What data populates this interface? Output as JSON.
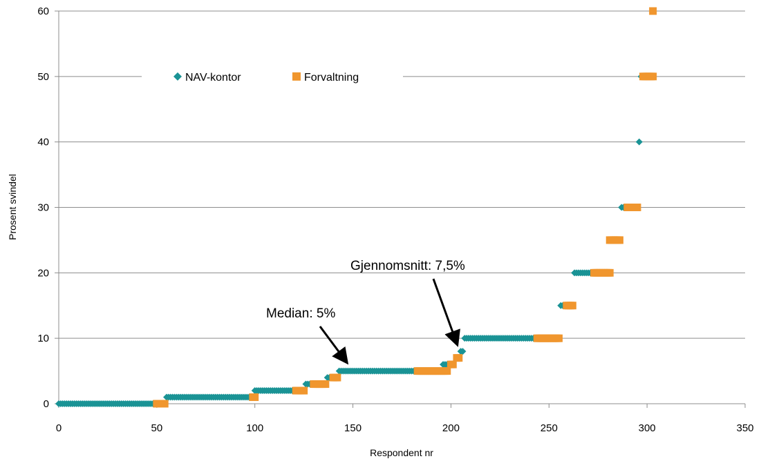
{
  "chart_data": {
    "type": "scatter",
    "title": "",
    "xlabel": "Respondent nr",
    "ylabel": "Prosent svindel",
    "xlim": [
      0,
      350
    ],
    "ylim": [
      0,
      60
    ],
    "x_ticks": [
      "0",
      "50",
      "100",
      "150",
      "200",
      "250",
      "300",
      "350"
    ],
    "y_ticks": [
      "0",
      "10",
      "20",
      "30",
      "40",
      "50",
      "60"
    ],
    "grid": "horizontal",
    "legend_position": "top",
    "series": [
      {
        "name": "NAV-kontor",
        "color": "#1a9395",
        "marker": "diamond",
        "segments": [
          {
            "x_start": 0,
            "x_end": 49,
            "y": 0
          },
          {
            "x_start": 55,
            "x_end": 97,
            "y": 1
          },
          {
            "x_start": 100,
            "x_end": 120,
            "y": 2
          },
          {
            "x_start": 126,
            "x_end": 129,
            "y": 3
          },
          {
            "x_start": 137,
            "x_end": 139,
            "y": 4
          },
          {
            "x_start": 143,
            "x_end": 182,
            "y": 5
          },
          {
            "x_start": 196,
            "x_end": 199,
            "y": 6
          },
          {
            "x_start": 205,
            "x_end": 206,
            "y": 8
          },
          {
            "x_start": 207,
            "x_end": 243,
            "y": 10
          },
          {
            "x_start": 256,
            "x_end": 258,
            "y": 15
          },
          {
            "x_start": 263,
            "x_end": 272,
            "y": 20
          },
          {
            "x_start": 287,
            "x_end": 289,
            "y": 30
          },
          {
            "x_start": 296,
            "x_end": 296,
            "y": 40
          },
          {
            "x_start": 297,
            "x_end": 298,
            "y": 50
          }
        ]
      },
      {
        "name": "Forvaltning",
        "color": "#f0962e",
        "marker": "square",
        "segments": [
          {
            "x_start": 50,
            "x_end": 54,
            "y": 0
          },
          {
            "x_start": 99,
            "x_end": 100,
            "y": 1
          },
          {
            "x_start": 121,
            "x_end": 125,
            "y": 2
          },
          {
            "x_start": 130,
            "x_end": 136,
            "y": 3
          },
          {
            "x_start": 140,
            "x_end": 142,
            "y": 4
          },
          {
            "x_start": 183,
            "x_end": 198,
            "y": 5
          },
          {
            "x_start": 200,
            "x_end": 201,
            "y": 6
          },
          {
            "x_start": 203,
            "x_end": 204,
            "y": 7
          },
          {
            "x_start": 244,
            "x_end": 255,
            "y": 10
          },
          {
            "x_start": 259,
            "x_end": 262,
            "y": 15
          },
          {
            "x_start": 273,
            "x_end": 281,
            "y": 20
          },
          {
            "x_start": 281,
            "x_end": 286,
            "y": 25
          },
          {
            "x_start": 290,
            "x_end": 295,
            "y": 30
          },
          {
            "x_start": 298,
            "x_end": 303,
            "y": 50
          },
          {
            "x_start": 303,
            "x_end": 303,
            "y": 60
          }
        ]
      }
    ],
    "annotations": [
      {
        "text": "Median: 5%",
        "x": 150,
        "y": 5
      },
      {
        "text": "Gjennomsnitt: 7,5%",
        "x": 204,
        "y": 8.2
      }
    ]
  }
}
